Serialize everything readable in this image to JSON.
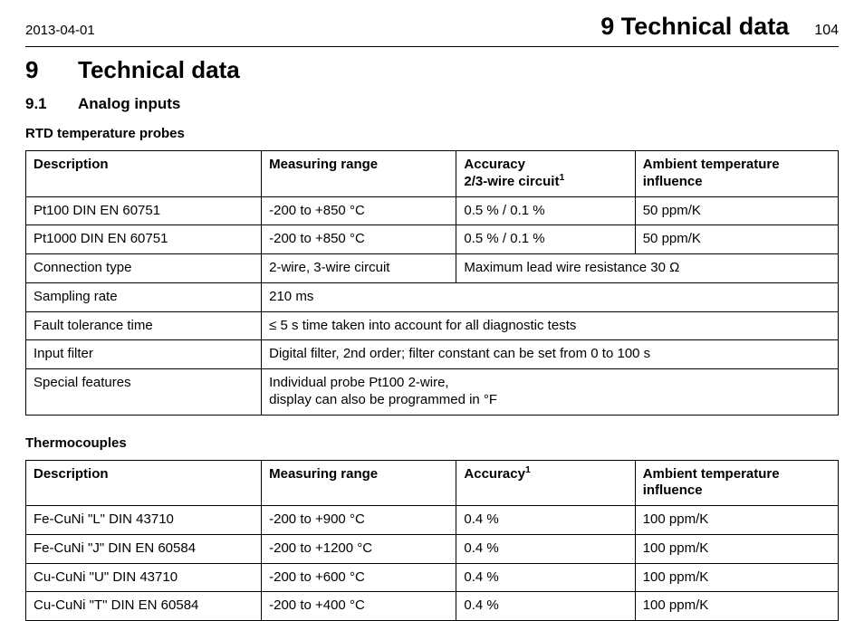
{
  "header": {
    "date": "2013-04-01",
    "title": "9 Technical data",
    "page": "104"
  },
  "chapter": {
    "num": "9",
    "title": "Technical data"
  },
  "section": {
    "num": "9.1",
    "title": "Analog inputs"
  },
  "table1": {
    "caption": "RTD temperature probes",
    "head": {
      "c1": "Description",
      "c2": "Measuring range",
      "c3a": "Accuracy",
      "c3b": "2/3-wire circuit",
      "c3sup": "1",
      "c4": "Ambient temperature influence"
    },
    "rows": [
      {
        "c1": "Pt100 DIN EN 60751",
        "c2": "-200 to +850 °C",
        "c3": "0.5 % / 0.1 %",
        "c4": "50 ppm/K"
      },
      {
        "c1": "Pt1000 DIN EN 60751",
        "c2": "-200 to +850 °C",
        "c3": "0.5 % / 0.1 %",
        "c4": "50 ppm/K"
      }
    ],
    "spanrows": [
      {
        "c1": "Connection type",
        "c2": "2-wire, 3-wire circuit",
        "rest": "Maximum lead wire resistance 30 Ω",
        "split": true
      },
      {
        "c1": "Sampling rate",
        "rest": "210 ms"
      },
      {
        "c1": "Fault tolerance time",
        "rest": "≤ 5 s time taken into account for all diagnostic tests"
      },
      {
        "c1": "Input filter",
        "rest": "Digital filter, 2nd order; filter constant can be set from 0 to 100 s"
      },
      {
        "c1": "Special features",
        "rest": "Individual probe Pt100 2-wire,\ndisplay can also be programmed in °F"
      }
    ]
  },
  "table2": {
    "caption": "Thermocouples",
    "head": {
      "c1": "Description",
      "c2": "Measuring range",
      "c3": "Accuracy",
      "c3sup": "1",
      "c4": "Ambient temperature influence"
    },
    "rows": [
      {
        "c1": "Fe-CuNi \"L\" DIN 43710",
        "c2": "-200 to +900 °C",
        "c3": "0.4 %",
        "c4": "100 ppm/K"
      },
      {
        "c1": "Fe-CuNi \"J\" DIN EN 60584",
        "c2": "-200 to +1200 °C",
        "c3": "0.4 %",
        "c4": "100 ppm/K"
      },
      {
        "c1": "Cu-CuNi \"U\" DIN 43710",
        "c2": "-200 to +600 °C",
        "c3": "0.4 %",
        "c4": "100 ppm/K"
      },
      {
        "c1": "Cu-CuNi \"T\" DIN EN 60584",
        "c2": "-200 to +400 °C",
        "c3": "0.4 %",
        "c4": "100 ppm/K"
      }
    ]
  }
}
